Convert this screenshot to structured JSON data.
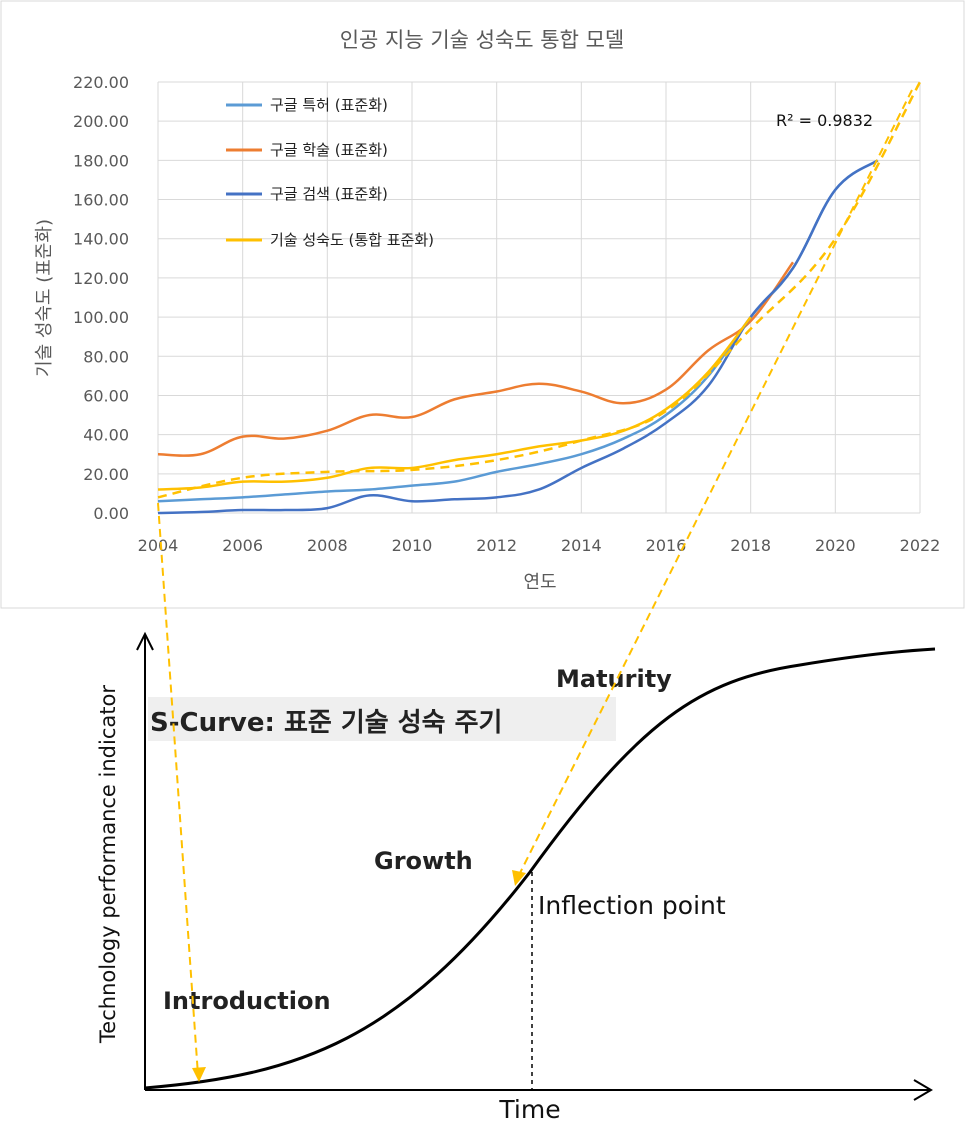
{
  "chart_data": [
    {
      "type": "line",
      "title": "인공 지능 기술 성숙도 통합 모델",
      "xlabel": "연도",
      "ylabel": "기술 성숙도 (표준화)",
      "xlim": [
        2004,
        2022
      ],
      "ylim": [
        0,
        220
      ],
      "x_ticks": [
        "2004",
        "2006",
        "2008",
        "2010",
        "2012",
        "2014",
        "2016",
        "2018",
        "2020",
        "2022"
      ],
      "y_ticks": [
        "0.00",
        "20.00",
        "40.00",
        "60.00",
        "80.00",
        "100.00",
        "120.00",
        "140.00",
        "160.00",
        "180.00",
        "200.00",
        "220.00"
      ],
      "grid": true,
      "legend_position": "top-left",
      "annotation": "R² = 0.9832",
      "series": [
        {
          "name": "구글 특허 (표준화)",
          "color": "#5b9bd5",
          "x": [
            2004,
            2005,
            2006,
            2007,
            2008,
            2009,
            2010,
            2011,
            2012,
            2013,
            2014,
            2015,
            2016,
            2017,
            2018,
            2019,
            2020,
            2021
          ],
          "y": [
            6,
            7,
            8,
            9.5,
            11,
            12,
            14,
            16,
            21,
            25,
            30,
            38,
            50,
            70,
            100,
            125,
            165,
            180
          ]
        },
        {
          "name": "구글 학술 (표준화)",
          "color": "#ed7d31",
          "x": [
            2004,
            2005,
            2006,
            2007,
            2008,
            2009,
            2010,
            2011,
            2012,
            2013,
            2014,
            2015,
            2016,
            2017,
            2018,
            2019
          ],
          "y": [
            30,
            30,
            39,
            38,
            42,
            50,
            49,
            58,
            62,
            66,
            62,
            56,
            63,
            83,
            98,
            128
          ]
        },
        {
          "name": "구글 검색 (표준화)",
          "color": "#4472c4",
          "x": [
            2004,
            2005,
            2006,
            2007,
            2008,
            2009,
            2010,
            2011,
            2012,
            2013,
            2014,
            2015,
            2016,
            2017,
            2018,
            2019,
            2020,
            2021
          ],
          "y": [
            0,
            0.5,
            1.5,
            1.5,
            2.5,
            9,
            6,
            7,
            8,
            12,
            23,
            33,
            46,
            65,
            100,
            125,
            165,
            180
          ]
        },
        {
          "name": "기술 성숙도 (통합 표준화)",
          "color": "#ffc000",
          "x": [
            2004,
            2005,
            2006,
            2007,
            2008,
            2009,
            2010,
            2011,
            2012,
            2013,
            2014,
            2015,
            2016,
            2017,
            2018
          ],
          "y": [
            12,
            13,
            16,
            16,
            18,
            23,
            23,
            27,
            30,
            34,
            37,
            42,
            53,
            72,
            100
          ]
        }
      ],
      "trendline": {
        "color": "#ffc000",
        "style": "dashed",
        "x": [
          2004,
          2006,
          2008,
          2010,
          2012,
          2014,
          2016,
          2018,
          2020,
          2022
        ],
        "y": [
          8,
          18,
          21,
          22,
          27,
          37,
          52,
          94,
          140,
          220
        ]
      }
    },
    {
      "type": "line",
      "title": "S-Curve: 표준 기술 성숙 주기",
      "xlabel": "Time",
      "ylabel": "Technology performance indicator",
      "annotations": [
        "Introduction",
        "Growth",
        "Maturity",
        "Inflection point"
      ]
    }
  ]
}
